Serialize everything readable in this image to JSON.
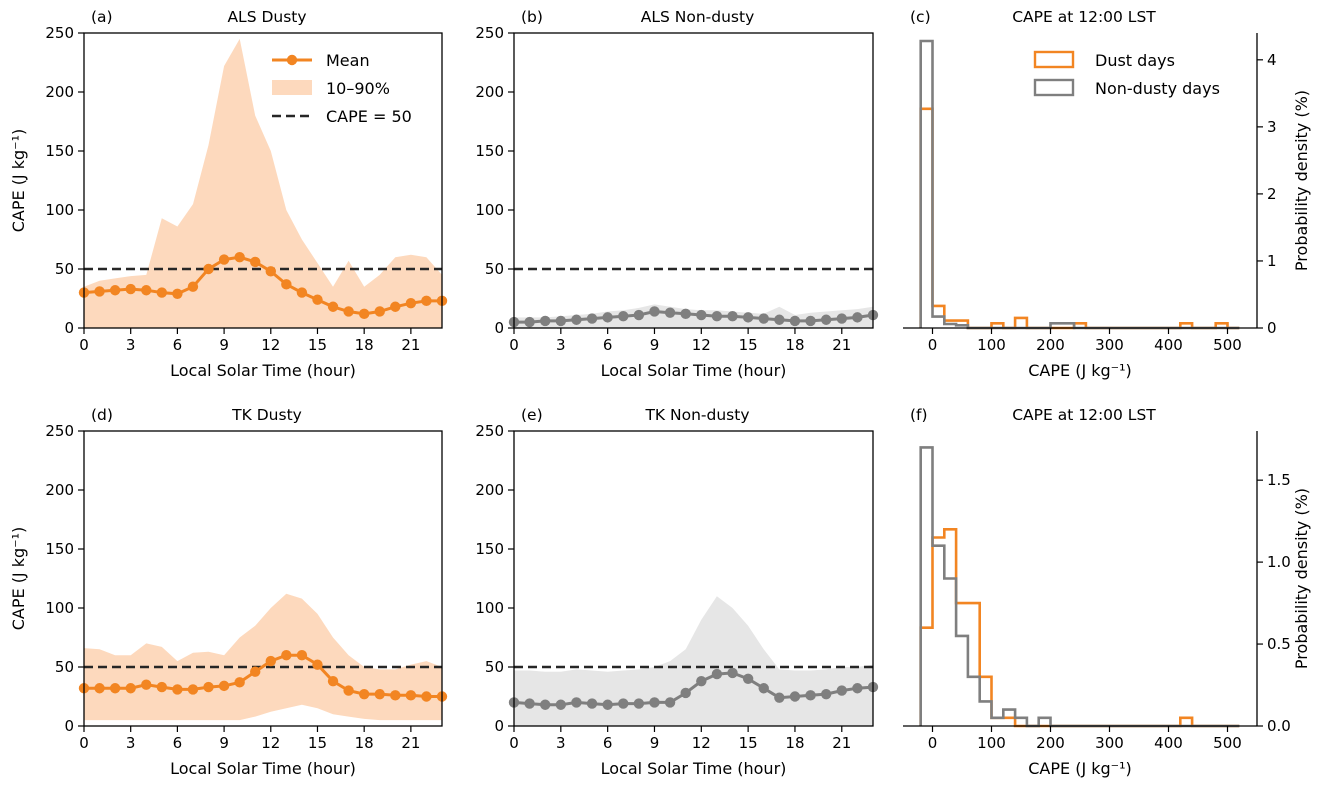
{
  "colors": {
    "dusty_line": "#f28522",
    "dusty_band": "#fdd9bd",
    "nondusty_line": "#7f7f7f",
    "nondusty_band": "#e6e6e6",
    "threshold_line": "#262626"
  },
  "chart_data": [
    {
      "id": "a",
      "type": "line",
      "panel_letter": "(a)",
      "title": "ALS Dusty",
      "xlabel": "Local Solar Time (hour)",
      "ylabel": "CAPE (J kg⁻¹)",
      "xticks": [
        0,
        3,
        6,
        9,
        12,
        15,
        18,
        21
      ],
      "yticks": [
        0,
        50,
        100,
        150,
        200,
        250
      ],
      "xlim": [
        0,
        23
      ],
      "ylim": [
        0,
        250
      ],
      "threshold": 50,
      "style": "dusty",
      "legend": {
        "position": "top-right",
        "mean": "Mean",
        "band": "10–90%",
        "threshold": "CAPE = 50"
      },
      "x": [
        0,
        1,
        2,
        3,
        4,
        5,
        6,
        7,
        8,
        9,
        10,
        11,
        12,
        13,
        14,
        15,
        16,
        17,
        18,
        19,
        20,
        21,
        22,
        23
      ],
      "mean": [
        30,
        31,
        32,
        33,
        32,
        30,
        29,
        35,
        50,
        58,
        60,
        56,
        48,
        37,
        30,
        24,
        18,
        14,
        12,
        14,
        18,
        21,
        23,
        23
      ],
      "p10": [
        0,
        0,
        0,
        0,
        0,
        0,
        0,
        0,
        0,
        0,
        0,
        0,
        0,
        0,
        0,
        0,
        0,
        0,
        0,
        0,
        0,
        0,
        0,
        0
      ],
      "p90": [
        35,
        40,
        42,
        44,
        45,
        93,
        86,
        105,
        155,
        222,
        245,
        180,
        150,
        100,
        75,
        55,
        35,
        57,
        35,
        45,
        60,
        62,
        60,
        45
      ]
    },
    {
      "id": "b",
      "type": "line",
      "panel_letter": "(b)",
      "title": "ALS Non-dusty",
      "xlabel": "Local Solar Time (hour)",
      "xticks": [
        0,
        3,
        6,
        9,
        12,
        15,
        18,
        21
      ],
      "yticks": [
        0,
        50,
        100,
        150,
        200,
        250
      ],
      "xlim": [
        0,
        23
      ],
      "ylim": [
        0,
        250
      ],
      "threshold": 50,
      "style": "nondusty",
      "x": [
        0,
        1,
        2,
        3,
        4,
        5,
        6,
        7,
        8,
        9,
        10,
        11,
        12,
        13,
        14,
        15,
        16,
        17,
        18,
        19,
        20,
        21,
        22,
        23
      ],
      "mean": [
        5,
        5,
        6,
        6,
        7,
        8,
        9,
        10,
        11,
        14,
        13,
        12,
        11,
        10,
        10,
        9,
        8,
        7,
        6,
        6,
        7,
        8,
        9,
        11
      ],
      "p10": [
        0,
        0,
        0,
        0,
        0,
        0,
        0,
        0,
        0,
        0,
        0,
        0,
        0,
        0,
        0,
        0,
        0,
        0,
        0,
        0,
        0,
        0,
        0,
        0
      ],
      "p90": [
        9,
        9,
        9,
        10,
        11,
        12,
        14,
        15,
        17,
        20,
        18,
        16,
        15,
        15,
        14,
        13,
        12,
        18,
        11,
        13,
        14,
        15,
        16,
        18
      ]
    },
    {
      "id": "c",
      "type": "histogram",
      "panel_letter": "(c)",
      "title": "CAPE at 12:00 LST",
      "xlabel": "CAPE (J kg⁻¹)",
      "ylabel": "Probability density (%)",
      "xticks": [
        0,
        100,
        200,
        300,
        400,
        500
      ],
      "yticks": [
        0,
        1,
        2,
        3,
        4
      ],
      "xlim": [
        -50,
        550
      ],
      "ylim": [
        0,
        4.4
      ],
      "bin_width": 20,
      "bins": [
        -20,
        0,
        20,
        40,
        60,
        80,
        100,
        120,
        140,
        160,
        180,
        200,
        220,
        240,
        260,
        280,
        300,
        320,
        340,
        360,
        380,
        400,
        420,
        440,
        460,
        480,
        500,
        520
      ],
      "legend": {
        "position": "top-right",
        "dust": "Dust days",
        "nondusty": "Non-dusty days"
      },
      "series": [
        {
          "name": "Dust days",
          "key": "dust",
          "density": [
            3.27,
            0.33,
            0.11,
            0.11,
            0,
            0,
            0.07,
            0,
            0.15,
            0,
            0,
            0,
            0,
            0.07,
            0,
            0,
            0,
            0,
            0,
            0,
            0,
            0,
            0.07,
            0,
            0,
            0.07,
            0
          ]
        },
        {
          "name": "Non-dusty days",
          "key": "nondusty",
          "density": [
            4.28,
            0.17,
            0.06,
            0.04,
            0,
            0,
            0,
            0,
            0,
            0,
            0,
            0.07,
            0.07,
            0,
            0,
            0,
            0,
            0,
            0,
            0,
            0,
            0,
            0,
            0,
            0,
            0,
            0
          ]
        }
      ]
    },
    {
      "id": "d",
      "type": "line",
      "panel_letter": "(d)",
      "title": "TK Dusty",
      "xlabel": "Local Solar Time (hour)",
      "ylabel": "CAPE (J kg⁻¹)",
      "xticks": [
        0,
        3,
        6,
        9,
        12,
        15,
        18,
        21
      ],
      "yticks": [
        0,
        50,
        100,
        150,
        200,
        250
      ],
      "xlim": [
        0,
        23
      ],
      "ylim": [
        0,
        250
      ],
      "threshold": 50,
      "style": "dusty",
      "x": [
        0,
        1,
        2,
        3,
        4,
        5,
        6,
        7,
        8,
        9,
        10,
        11,
        12,
        13,
        14,
        15,
        16,
        17,
        18,
        19,
        20,
        21,
        22,
        23
      ],
      "mean": [
        32,
        32,
        32,
        32,
        35,
        33,
        31,
        31,
        33,
        34,
        37,
        46,
        55,
        60,
        60,
        52,
        38,
        30,
        27,
        27,
        26,
        26,
        25,
        25
      ],
      "p10": [
        5,
        5,
        5,
        5,
        5,
        5,
        5,
        5,
        5,
        5,
        5,
        8,
        12,
        15,
        18,
        15,
        10,
        8,
        6,
        5,
        5,
        5,
        5,
        5
      ],
      "p90": [
        66,
        65,
        60,
        60,
        70,
        67,
        55,
        62,
        63,
        60,
        75,
        85,
        100,
        112,
        108,
        95,
        75,
        60,
        50,
        48,
        48,
        52,
        55,
        50
      ]
    },
    {
      "id": "e",
      "type": "line",
      "panel_letter": "(e)",
      "title": "TK Non-dusty",
      "xlabel": "Local Solar Time (hour)",
      "xticks": [
        0,
        3,
        6,
        9,
        12,
        15,
        18,
        21
      ],
      "yticks": [
        0,
        50,
        100,
        150,
        200,
        250
      ],
      "xlim": [
        0,
        23
      ],
      "ylim": [
        0,
        250
      ],
      "threshold": 50,
      "style": "nondusty",
      "x": [
        0,
        1,
        2,
        3,
        4,
        5,
        6,
        7,
        8,
        9,
        10,
        11,
        12,
        13,
        14,
        15,
        16,
        17,
        18,
        19,
        20,
        21,
        22,
        23
      ],
      "mean": [
        20,
        19,
        18,
        18,
        20,
        19,
        18,
        19,
        19,
        20,
        20,
        28,
        38,
        44,
        45,
        40,
        32,
        24,
        25,
        26,
        27,
        30,
        32,
        33
      ],
      "p10": [
        0,
        0,
        0,
        0,
        0,
        0,
        0,
        0,
        0,
        0,
        0,
        0,
        0,
        0,
        0,
        0,
        0,
        0,
        0,
        0,
        0,
        0,
        0,
        0
      ],
      "p90": [
        47,
        47,
        46,
        46,
        48,
        47,
        46,
        47,
        48,
        50,
        55,
        65,
        90,
        110,
        100,
        85,
        65,
        48,
        47,
        47,
        48,
        50,
        50,
        52
      ]
    },
    {
      "id": "f",
      "type": "histogram",
      "panel_letter": "(f)",
      "title": "CAPE at 12:00 LST",
      "xlabel": "CAPE (J kg⁻¹)",
      "ylabel": "Probability density (%)",
      "xticks": [
        0,
        100,
        200,
        300,
        400,
        500
      ],
      "yticks": [
        0.0,
        0.5,
        1.0,
        1.5
      ],
      "ytick_labels": [
        "0.0",
        "0.5",
        "1.0",
        "1.5"
      ],
      "xlim": [
        -50,
        550
      ],
      "ylim": [
        0,
        1.8
      ],
      "bin_width": 20,
      "bins": [
        -20,
        0,
        20,
        40,
        60,
        80,
        100,
        120,
        140,
        160,
        180,
        200,
        220,
        240,
        260,
        280,
        300,
        320,
        340,
        360,
        380,
        400,
        420,
        440,
        460,
        480,
        500,
        520
      ],
      "series": [
        {
          "name": "Dust days",
          "key": "dust",
          "density": [
            0.6,
            1.15,
            1.2,
            0.75,
            0.75,
            0.3,
            0.05,
            0.05,
            0,
            0,
            0,
            0,
            0,
            0,
            0,
            0,
            0,
            0,
            0,
            0,
            0,
            0,
            0.05,
            0,
            0,
            0,
            0
          ]
        },
        {
          "name": "Non-dusty days",
          "key": "nondusty",
          "density": [
            1.7,
            1.1,
            0.9,
            0.55,
            0.3,
            0.15,
            0.05,
            0.1,
            0.05,
            0,
            0.05,
            0,
            0,
            0,
            0,
            0,
            0,
            0,
            0,
            0,
            0,
            0,
            0,
            0,
            0,
            0,
            0
          ]
        }
      ]
    }
  ]
}
